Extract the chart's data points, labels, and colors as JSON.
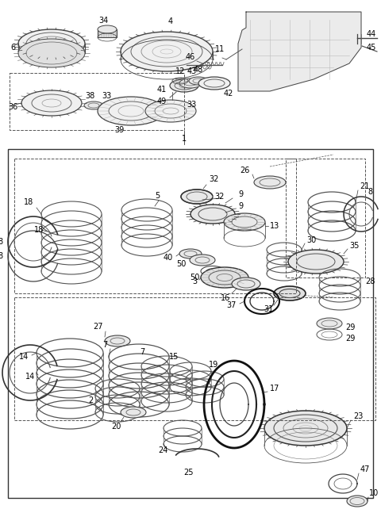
{
  "bg_color": "#ffffff",
  "fig_width": 4.8,
  "fig_height": 6.47,
  "dpi": 100,
  "lc": "#333333",
  "lc2": "#666666",
  "lc3": "#999999"
}
